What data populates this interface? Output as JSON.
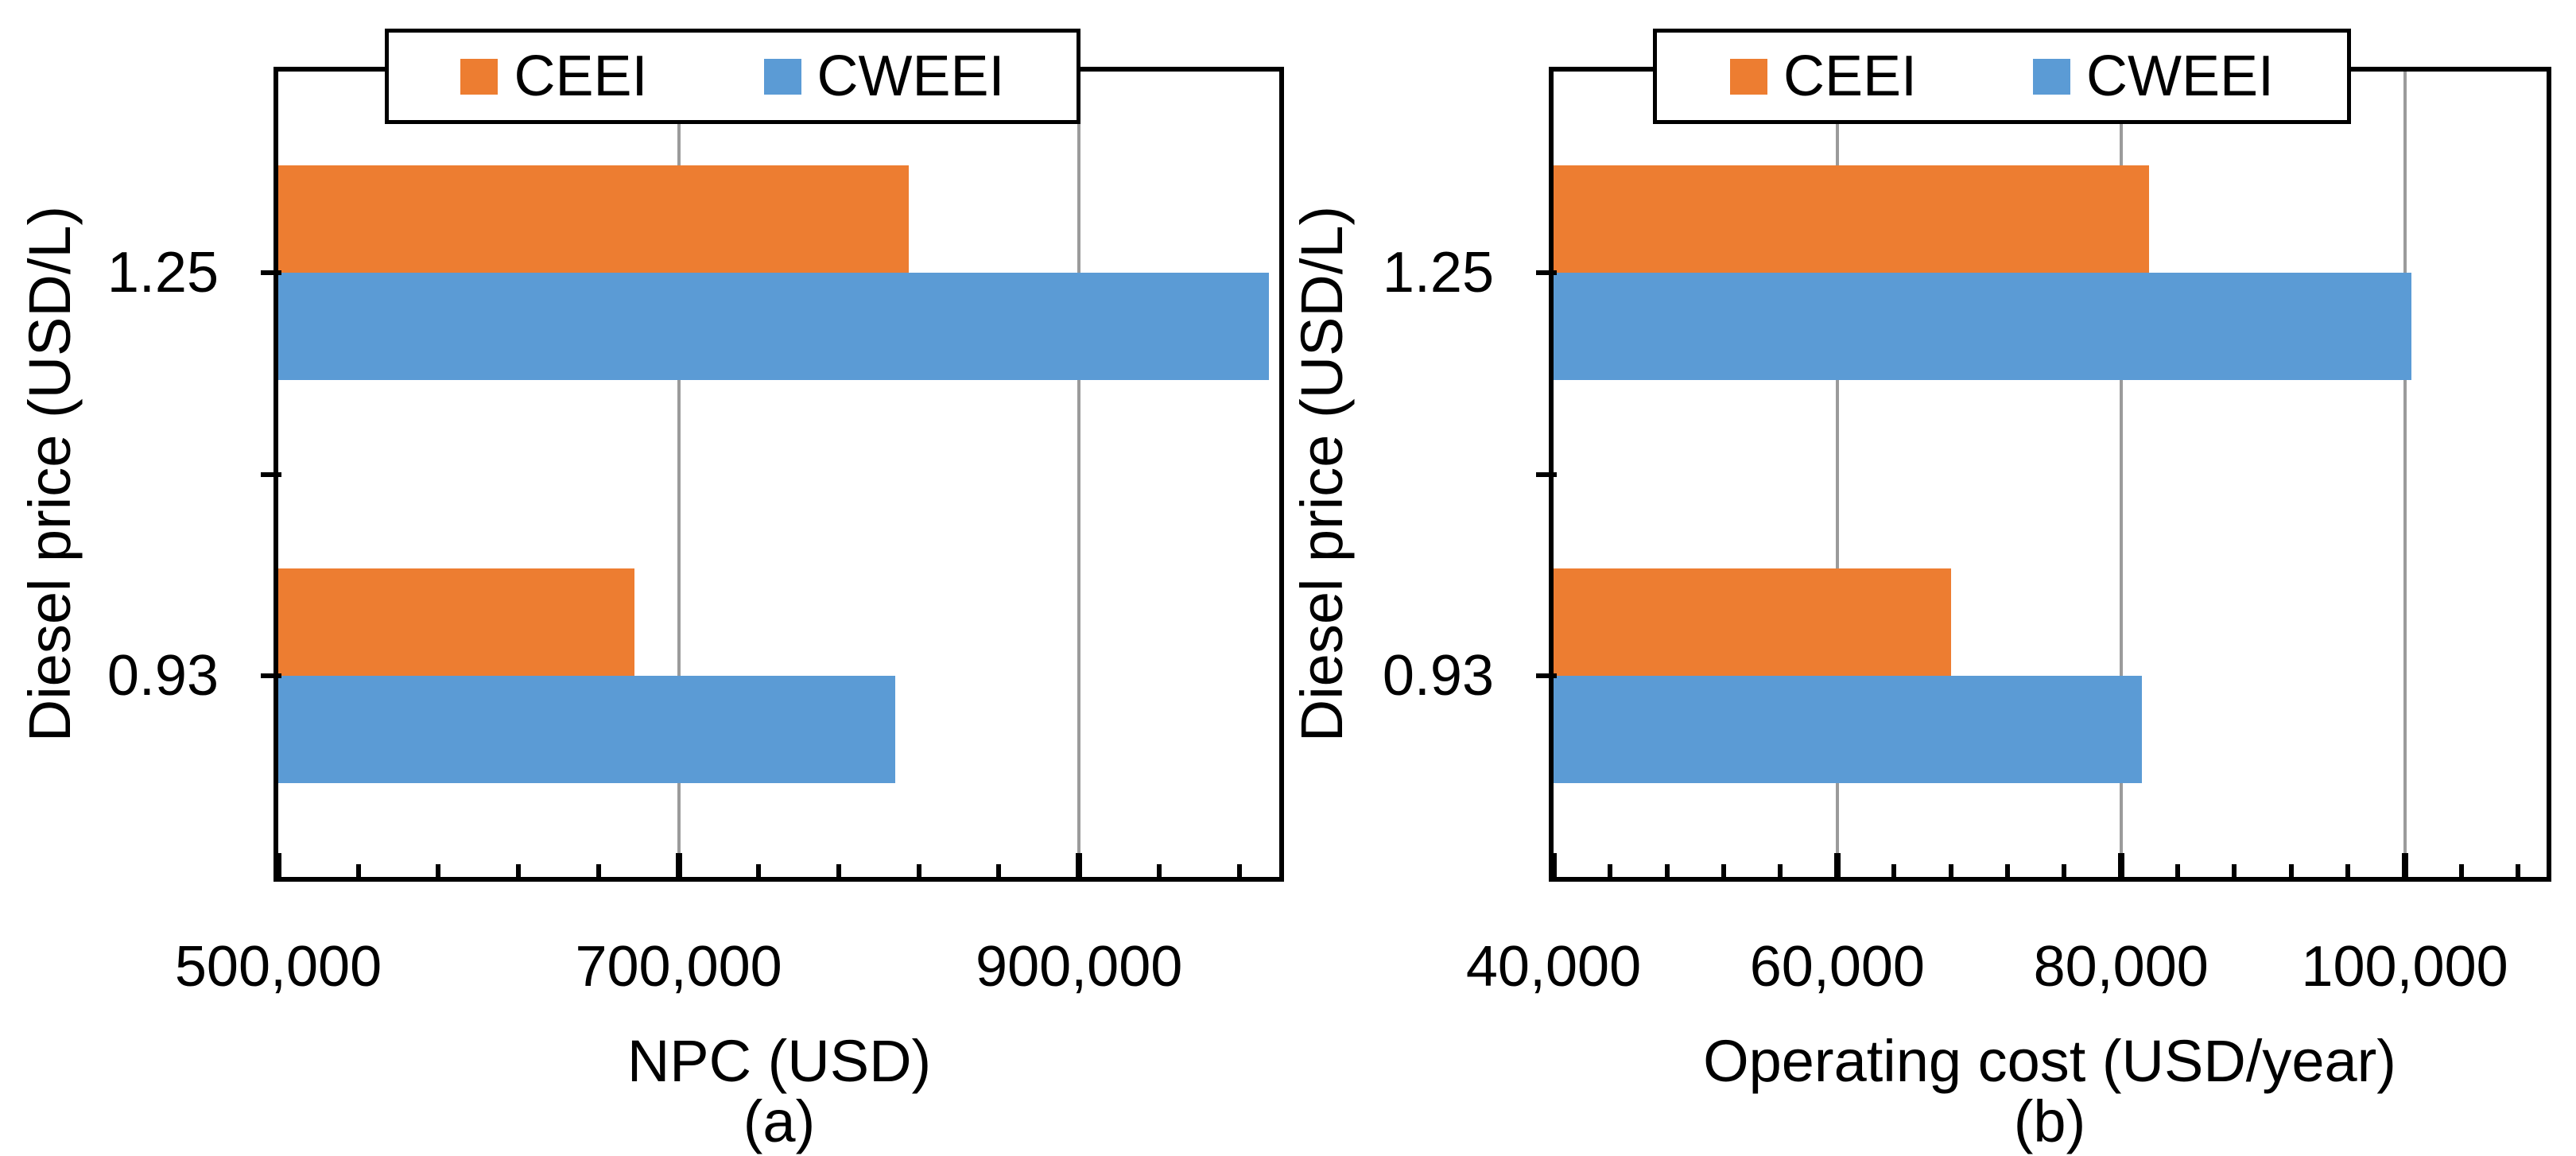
{
  "figure": {
    "background": "#ffffff",
    "text_color": "#000000",
    "axis_color": "#000000",
    "gridline_color": "#9b9b9b"
  },
  "chart_data": [
    {
      "type": "bar",
      "orientation": "horizontal",
      "panel_label": "(a)",
      "title": "",
      "xlabel": "NPC (USD)",
      "ylabel": "Diesel price (USD/L)",
      "categories": [
        "1.25",
        "0.93"
      ],
      "series": [
        {
          "name": "CEEI",
          "color": "#ED7D31",
          "values": [
            815000,
            678000
          ]
        },
        {
          "name": "CWEEI",
          "color": "#5B9BD5",
          "values": [
            995000,
            808000
          ]
        }
      ],
      "xlim": [
        500000,
        1000000
      ],
      "xticks": [
        500000,
        700000,
        900000
      ],
      "xtick_labels": [
        "500,000",
        "700,000",
        "900,000"
      ],
      "gridlines": [
        700000,
        900000
      ],
      "minor_tick_step": 40000,
      "grid": true,
      "legend_position": "top-center"
    },
    {
      "type": "bar",
      "orientation": "horizontal",
      "panel_label": "(b)",
      "title": "",
      "xlabel": "Operating cost (USD/year)",
      "ylabel": "Diesel price (USD/L)",
      "categories": [
        "1.25",
        "0.93"
      ],
      "series": [
        {
          "name": "CEEI",
          "color": "#ED7D31",
          "values": [
            82000,
            68000
          ]
        },
        {
          "name": "CWEEI",
          "color": "#5B9BD5",
          "values": [
            100500,
            81500
          ]
        }
      ],
      "xlim": [
        40000,
        110000
      ],
      "xticks": [
        40000,
        60000,
        80000,
        100000
      ],
      "xtick_labels": [
        "40,000",
        "60,000",
        "80,000",
        "100,000"
      ],
      "gridlines": [
        60000,
        80000,
        100000
      ],
      "minor_tick_step": 4000,
      "grid": true,
      "legend_position": "top-center"
    }
  ]
}
